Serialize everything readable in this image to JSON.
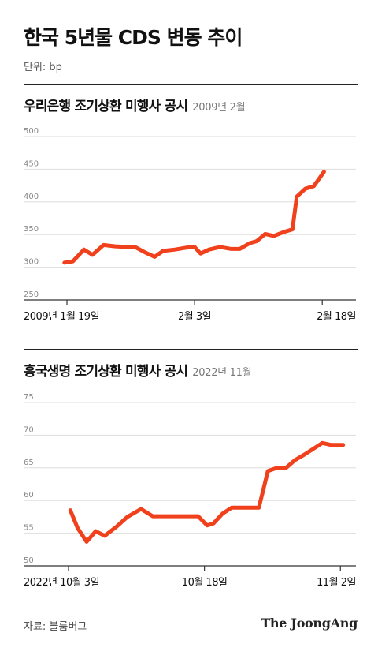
{
  "title": "한국 5년물 CDS 변동 추이",
  "unit_label": "단위: bp",
  "source": "자료: 블룸버그",
  "logo_text": "The JoongAng",
  "colors": {
    "line": "#f0411c",
    "grid": "#dddddd",
    "axis": "#333333",
    "tick": "#888888"
  },
  "chart_data": [
    {
      "type": "line",
      "title": "우리은행 조기상환 미행사 공시",
      "subtitle": "2009년 2월",
      "ylim": [
        250,
        500
      ],
      "yticks": [
        250,
        300,
        350,
        400,
        450,
        500
      ],
      "x_range": [
        0,
        31
      ],
      "xticks": [
        {
          "x": 0,
          "label": "2009년 1월 19일"
        },
        {
          "x": 15,
          "label": "2월 3일"
        },
        {
          "x": 30,
          "label": "2월 18일"
        }
      ],
      "series": [
        {
          "x": [
            -0.3,
            0.7,
            2,
            3,
            4.3,
            5.7,
            7,
            8,
            9.3,
            10.3,
            11.3,
            12.7,
            14,
            15,
            15.7,
            16.7,
            18,
            19.3,
            20.3,
            21.5,
            22.3,
            23.3,
            24.3,
            25.5,
            26.5,
            27,
            28,
            29,
            30.2
          ],
          "values": [
            307,
            309,
            327,
            319,
            334,
            332,
            331,
            331,
            322,
            316,
            325,
            327,
            330,
            331,
            321,
            327,
            331,
            328,
            328,
            337,
            340,
            351,
            348,
            354,
            358,
            408,
            420,
            424,
            446
          ]
        }
      ]
    },
    {
      "type": "line",
      "title": "흥국생명 조기상환 미행사 공시",
      "subtitle": "2022년 11월",
      "ylim": [
        50,
        75
      ],
      "yticks": [
        50,
        55,
        60,
        65,
        70,
        75
      ],
      "x_range": [
        0,
        30.5
      ],
      "xticks": [
        {
          "x": 0,
          "label": "2022년 10월 3일"
        },
        {
          "x": 15,
          "label": "10월 18일"
        },
        {
          "x": 30,
          "label": "11월 2일"
        }
      ],
      "series": [
        {
          "x": [
            0.2,
            1,
            2,
            3,
            4,
            5.3,
            6.5,
            8,
            9.3,
            10.3,
            11.3,
            12.3,
            13.3,
            14.3,
            15.3,
            16,
            17,
            18,
            19,
            20,
            21,
            22,
            23,
            24,
            25,
            26,
            27,
            28,
            29,
            30.3
          ],
          "values": [
            58.5,
            55.8,
            53.7,
            55.3,
            54.6,
            56.0,
            57.5,
            58.7,
            57.6,
            57.6,
            57.6,
            57.6,
            57.6,
            57.6,
            56.2,
            56.5,
            58.0,
            58.9,
            58.9,
            58.9,
            58.9,
            64.5,
            65.0,
            65.0,
            66.2,
            67.0,
            67.9,
            68.8,
            68.5,
            68.5
          ]
        }
      ]
    }
  ]
}
